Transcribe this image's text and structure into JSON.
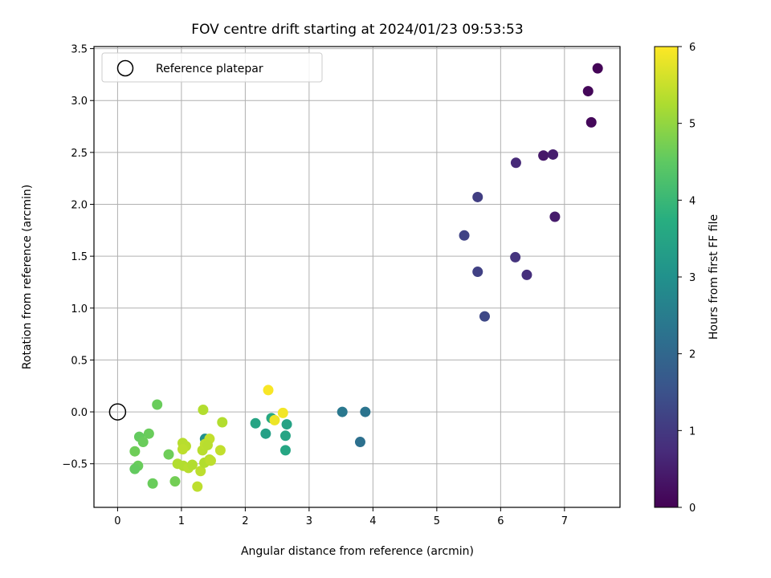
{
  "chart_data": {
    "type": "scatter",
    "title": "FOV centre drift starting at 2024/01/23 09:53:53",
    "xlabel": "Angular distance from reference (arcmin)",
    "ylabel": "Rotation from reference (arcmin)",
    "xlim": [
      -0.37,
      7.87
    ],
    "ylim": [
      -0.92,
      3.52
    ],
    "xticks": [
      0,
      1,
      2,
      3,
      4,
      5,
      6,
      7
    ],
    "yticks": [
      -0.5,
      0.0,
      0.5,
      1.0,
      1.5,
      2.0,
      2.5,
      3.0,
      3.5
    ],
    "ytick_labels": [
      "−0.5",
      "0.0",
      "0.5",
      "1.0",
      "1.5",
      "2.0",
      "2.5",
      "3.0",
      "3.5"
    ],
    "grid": true,
    "legend": {
      "position": "top-left",
      "label": "Reference platepar"
    },
    "reference_point": {
      "x": 0.0,
      "y": 0.0
    },
    "colorbar": {
      "label": "Hours from first FF file",
      "range": [
        0,
        6
      ],
      "ticks": [
        0,
        1,
        2,
        3,
        4,
        5,
        6
      ],
      "colormap": "viridis"
    },
    "points": [
      {
        "x": 7.52,
        "y": 3.31,
        "c": 0.05
      },
      {
        "x": 7.37,
        "y": 3.09,
        "c": 0.1
      },
      {
        "x": 7.42,
        "y": 2.79,
        "c": 0.12
      },
      {
        "x": 6.67,
        "y": 2.47,
        "c": 0.4
      },
      {
        "x": 6.82,
        "y": 2.48,
        "c": 0.5
      },
      {
        "x": 6.24,
        "y": 2.4,
        "c": 0.7
      },
      {
        "x": 6.85,
        "y": 1.88,
        "c": 0.45
      },
      {
        "x": 5.64,
        "y": 2.07,
        "c": 1.1
      },
      {
        "x": 5.43,
        "y": 1.7,
        "c": 1.2
      },
      {
        "x": 6.23,
        "y": 1.49,
        "c": 0.9
      },
      {
        "x": 6.41,
        "y": 1.32,
        "c": 0.8
      },
      {
        "x": 5.64,
        "y": 1.35,
        "c": 1.15
      },
      {
        "x": 5.75,
        "y": 0.92,
        "c": 1.3
      },
      {
        "x": 3.52,
        "y": 0.0,
        "c": 2.4
      },
      {
        "x": 3.88,
        "y": 0.0,
        "c": 2.3
      },
      {
        "x": 3.8,
        "y": -0.29,
        "c": 2.2
      },
      {
        "x": 2.16,
        "y": -0.11,
        "c": 3.5
      },
      {
        "x": 2.32,
        "y": -0.21,
        "c": 3.4
      },
      {
        "x": 2.65,
        "y": -0.12,
        "c": 3.45
      },
      {
        "x": 2.63,
        "y": -0.23,
        "c": 3.5
      },
      {
        "x": 2.63,
        "y": -0.37,
        "c": 3.55
      },
      {
        "x": 2.41,
        "y": -0.06,
        "c": 3.6
      },
      {
        "x": 1.37,
        "y": -0.26,
        "c": 2.95
      },
      {
        "x": 2.36,
        "y": 0.21,
        "c": 5.95
      },
      {
        "x": 2.59,
        "y": -0.01,
        "c": 5.9
      },
      {
        "x": 2.46,
        "y": -0.08,
        "c": 5.85
      },
      {
        "x": 0.62,
        "y": 0.07,
        "c": 4.6
      },
      {
        "x": 0.49,
        "y": -0.21,
        "c": 4.6
      },
      {
        "x": 0.34,
        "y": -0.24,
        "c": 4.55
      },
      {
        "x": 0.4,
        "y": -0.29,
        "c": 4.6
      },
      {
        "x": 0.27,
        "y": -0.38,
        "c": 4.65
      },
      {
        "x": 0.32,
        "y": -0.52,
        "c": 4.6
      },
      {
        "x": 0.27,
        "y": -0.55,
        "c": 4.55
      },
      {
        "x": 0.55,
        "y": -0.69,
        "c": 4.6
      },
      {
        "x": 0.8,
        "y": -0.41,
        "c": 4.65
      },
      {
        "x": 0.9,
        "y": -0.67,
        "c": 4.7
      },
      {
        "x": 1.34,
        "y": 0.02,
        "c": 5.3
      },
      {
        "x": 1.64,
        "y": -0.1,
        "c": 5.3
      },
      {
        "x": 1.02,
        "y": -0.3,
        "c": 5.35
      },
      {
        "x": 1.07,
        "y": -0.33,
        "c": 5.35
      },
      {
        "x": 1.02,
        "y": -0.36,
        "c": 5.4
      },
      {
        "x": 0.94,
        "y": -0.5,
        "c": 5.3
      },
      {
        "x": 1.03,
        "y": -0.52,
        "c": 5.3
      },
      {
        "x": 1.11,
        "y": -0.54,
        "c": 5.35
      },
      {
        "x": 1.17,
        "y": -0.51,
        "c": 5.3
      },
      {
        "x": 1.25,
        "y": -0.72,
        "c": 5.4
      },
      {
        "x": 1.3,
        "y": -0.57,
        "c": 5.4
      },
      {
        "x": 1.33,
        "y": -0.37,
        "c": 5.35
      },
      {
        "x": 1.37,
        "y": -0.31,
        "c": 5.4
      },
      {
        "x": 1.44,
        "y": -0.26,
        "c": 5.45
      },
      {
        "x": 1.41,
        "y": -0.32,
        "c": 5.35
      },
      {
        "x": 1.36,
        "y": -0.49,
        "c": 5.3
      },
      {
        "x": 1.44,
        "y": -0.46,
        "c": 5.35
      },
      {
        "x": 1.46,
        "y": -0.47,
        "c": 5.4
      },
      {
        "x": 1.61,
        "y": -0.37,
        "c": 5.45
      }
    ]
  }
}
